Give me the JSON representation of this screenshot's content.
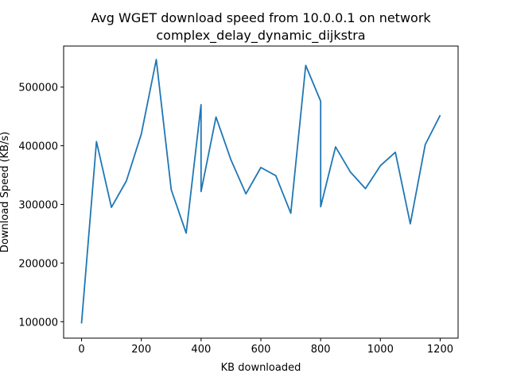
{
  "chart_data": {
    "type": "line",
    "title_line1": "Avg WGET download speed from 10.0.0.1 on network",
    "title_line2": "complex_delay_dynamic_dijkstra",
    "xlabel": "KB downloaded",
    "ylabel": "Download Speed (KB/s)",
    "xlim": [
      -60,
      1260
    ],
    "ylim": [
      72000,
      570000
    ],
    "xticks": [
      0,
      200,
      400,
      600,
      800,
      1000,
      1200
    ],
    "yticks": [
      100000,
      200000,
      300000,
      400000,
      500000
    ],
    "xtick_labels": [
      "0",
      "200",
      "400",
      "600",
      "800",
      "1000",
      "1200"
    ],
    "ytick_labels": [
      "100000",
      "200000",
      "300000",
      "400000",
      "500000"
    ],
    "grid": false,
    "line_color": "#1f77b4",
    "series": [
      {
        "x": [
          0,
          50,
          100,
          150,
          200,
          250,
          300,
          350,
          400,
          400,
          450,
          500,
          550,
          600,
          650,
          700,
          750,
          800,
          800,
          850,
          900,
          950,
          1000,
          1050,
          1100,
          1150,
          1200
        ],
        "y": [
          97000,
          407000,
          295000,
          340000,
          420000,
          547000,
          325000,
          251000,
          470000,
          322000,
          449000,
          376000,
          318000,
          363000,
          349000,
          285000,
          537000,
          476000,
          296000,
          398000,
          355000,
          327000,
          366000,
          389000,
          267000,
          402000,
          452000
        ]
      }
    ]
  }
}
